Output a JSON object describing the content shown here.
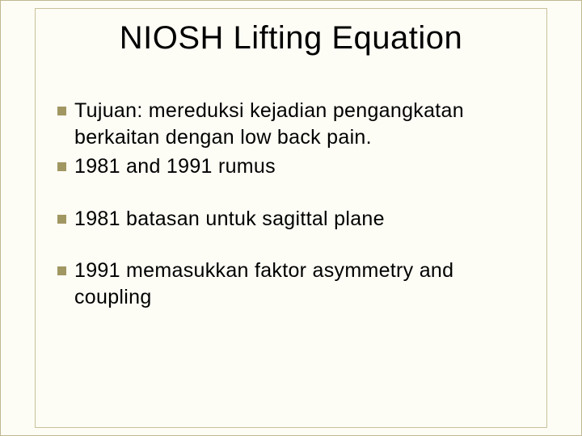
{
  "slide": {
    "title": "NIOSH Lifting Equation",
    "background_color": "#fdfcf5",
    "border_color": "#c0b890",
    "inner_border_color": "#c9c29a",
    "title_fontsize": 40,
    "body_fontsize": 25,
    "bullet_color": "#a19762",
    "text_color": "#000000",
    "groups": [
      {
        "items": [
          "Tujuan:  mereduksi kejadian pengangkatan berkaitan dengan low back pain.",
          "1981 and 1991 rumus"
        ]
      },
      {
        "items": [
          "1981 batasan untuk  sagittal plane"
        ]
      },
      {
        "items": [
          "1991 memasukkan faktor asymmetry and coupling"
        ]
      }
    ]
  }
}
